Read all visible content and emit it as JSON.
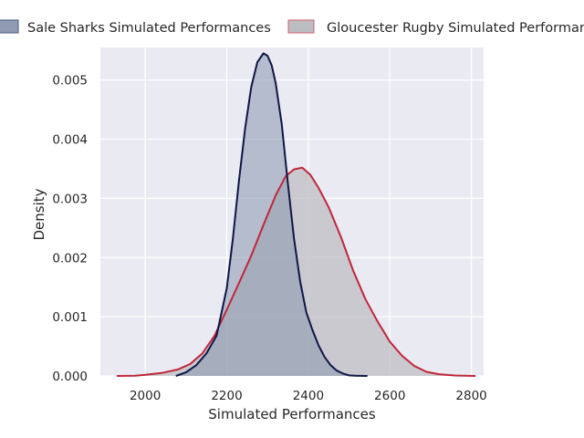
{
  "chart_data": {
    "type": "area",
    "title": "",
    "xlabel": "Simulated Performances",
    "ylabel": "Density",
    "xlim": [
      1890,
      2830
    ],
    "ylim": [
      0,
      0.00555
    ],
    "x_ticks": [
      2000,
      2200,
      2400,
      2600,
      2800
    ],
    "x_tick_labels": [
      "2000",
      "2200",
      "2400",
      "2600",
      "2800"
    ],
    "y_ticks": [
      0,
      0.001,
      0.002,
      0.003,
      0.004,
      0.005
    ],
    "y_tick_labels": [
      "0.000",
      "0.001",
      "0.002",
      "0.003",
      "0.004",
      "0.005"
    ],
    "grid": true,
    "legend_position": "top",
    "series": [
      {
        "name": "Sale Sharks Simulated Performances",
        "line_color": "#0f1545",
        "fill_color": "#8e9bb2",
        "x": [
          2075,
          2100,
          2125,
          2150,
          2175,
          2200,
          2215,
          2230,
          2245,
          2260,
          2275,
          2290,
          2300,
          2310,
          2320,
          2335,
          2350,
          2365,
          2380,
          2395,
          2410,
          2425,
          2440,
          2455,
          2470,
          2485,
          2500,
          2515,
          2530,
          2545
        ],
        "y": [
          0,
          6e-05,
          0.00018,
          0.00038,
          0.00068,
          0.00148,
          0.00232,
          0.0033,
          0.00418,
          0.00488,
          0.0053,
          0.00545,
          0.00541,
          0.00525,
          0.00495,
          0.00425,
          0.00325,
          0.00232,
          0.0016,
          0.00108,
          0.00078,
          0.00052,
          0.00032,
          0.00018,
          9e-05,
          4e-05,
          1e-05,
          5e-06,
          1e-06,
          0
        ]
      },
      {
        "name": "Gloucester Rugby Simulated Performances",
        "line_color": "#c0263a",
        "fill_color": "#bcbdc0",
        "x": [
          1930,
          1975,
          2000,
          2040,
          2080,
          2110,
          2140,
          2170,
          2200,
          2230,
          2260,
          2290,
          2320,
          2345,
          2365,
          2385,
          2405,
          2425,
          2450,
          2480,
          2510,
          2540,
          2570,
          2600,
          2630,
          2660,
          2690,
          2720,
          2760,
          2810
        ],
        "y": [
          0,
          5e-06,
          2e-05,
          5e-05,
          0.00011,
          0.0002,
          0.00038,
          0.00068,
          0.00112,
          0.00157,
          0.00203,
          0.00255,
          0.00305,
          0.00338,
          0.00349,
          0.00352,
          0.0034,
          0.00318,
          0.00285,
          0.00235,
          0.00178,
          0.0013,
          0.00092,
          0.00058,
          0.00034,
          0.00017,
          7e-05,
          3e-05,
          7e-06,
          0
        ]
      }
    ]
  }
}
